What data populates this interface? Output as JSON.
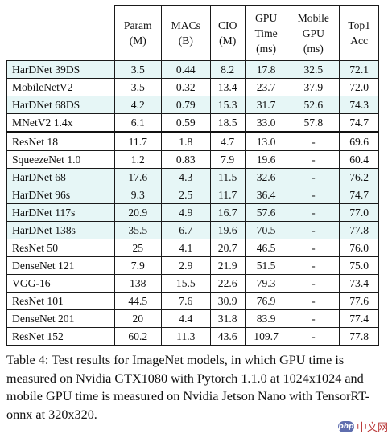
{
  "table": {
    "headers": [
      [],
      [
        "Param",
        "(M)"
      ],
      [
        "MACs",
        "(B)"
      ],
      [
        "CIO",
        "(M)"
      ],
      [
        "GPU",
        "Time",
        "(ms)"
      ],
      [
        "Mobile",
        "GPU",
        "(ms)"
      ],
      [
        "Top1",
        "Acc"
      ]
    ],
    "rows": [
      {
        "name": "HarDNet 39DS",
        "param": "3.5",
        "macs": "0.44",
        "cio": "8.2",
        "gpu": "17.8",
        "mobile": "32.5",
        "top1": "72.1",
        "highlight": true
      },
      {
        "name": "MobileNetV2",
        "param": "3.5",
        "macs": "0.32",
        "cio": "13.4",
        "gpu": "23.7",
        "mobile": "37.9",
        "top1": "72.0",
        "highlight": false
      },
      {
        "name": "HarDNet 68DS",
        "param": "4.2",
        "macs": "0.79",
        "cio": "15.3",
        "gpu": "31.7",
        "mobile": "52.6",
        "top1": "74.3",
        "highlight": true
      },
      {
        "name": "MNetV2 1.4x",
        "param": "6.1",
        "macs": "0.59",
        "cio": "18.5",
        "gpu": "33.0",
        "mobile": "57.8",
        "top1": "74.7",
        "highlight": false
      },
      {
        "name": "ResNet 18",
        "param": "11.7",
        "macs": "1.8",
        "cio": "4.7",
        "gpu": "13.0",
        "mobile": "-",
        "top1": "69.6",
        "highlight": false,
        "separator": true
      },
      {
        "name": "SqueezeNet 1.0",
        "param": "1.2",
        "macs": "0.83",
        "cio": "7.9",
        "gpu": "19.6",
        "mobile": "-",
        "top1": "60.4",
        "highlight": false
      },
      {
        "name": "HarDNet 68",
        "param": "17.6",
        "macs": "4.3",
        "cio": "11.5",
        "gpu": "32.6",
        "mobile": "-",
        "top1": "76.2",
        "highlight": true
      },
      {
        "name": "HarDNet 96s",
        "param": "9.3",
        "macs": "2.5",
        "cio": "11.7",
        "gpu": "36.4",
        "mobile": "-",
        "top1": "74.7",
        "highlight": true
      },
      {
        "name": "HarDNet 117s",
        "param": "20.9",
        "macs": "4.9",
        "cio": "16.7",
        "gpu": "57.6",
        "mobile": "-",
        "top1": "77.0",
        "highlight": true
      },
      {
        "name": "HarDNet 138s",
        "param": "35.5",
        "macs": "6.7",
        "cio": "19.6",
        "gpu": "70.5",
        "mobile": "-",
        "top1": "77.8",
        "highlight": true
      },
      {
        "name": "ResNet 50",
        "param": "25",
        "macs": "4.1",
        "cio": "20.7",
        "gpu": "46.5",
        "mobile": "-",
        "top1": "76.0",
        "highlight": false
      },
      {
        "name": "DenseNet 121",
        "param": "7.9",
        "macs": "2.9",
        "cio": "21.9",
        "gpu": "51.5",
        "mobile": "-",
        "top1": "75.0",
        "highlight": false
      },
      {
        "name": "VGG-16",
        "param": "138",
        "macs": "15.5",
        "cio": "22.6",
        "gpu": "79.3",
        "mobile": "-",
        "top1": "73.4",
        "highlight": false
      },
      {
        "name": "ResNet 101",
        "param": "44.5",
        "macs": "7.6",
        "cio": "30.9",
        "gpu": "76.9",
        "mobile": "-",
        "top1": "77.6",
        "highlight": false
      },
      {
        "name": "DenseNet 201",
        "param": "20",
        "macs": "4.4",
        "cio": "31.8",
        "gpu": "83.9",
        "mobile": "-",
        "top1": "77.4",
        "highlight": false
      },
      {
        "name": "ResNet 152",
        "param": "60.2",
        "macs": "11.3",
        "cio": "43.6",
        "gpu": "109.7",
        "mobile": "-",
        "top1": "77.8",
        "highlight": false
      }
    ]
  },
  "caption": "Table 4: Test results for ImageNet models, in which GPU time is measured on Nvidia GTX1080 with Pytorch 1.1.0 at 1024x1024 and mobile GPU time is measured on Nvidia Jetson Nano with TensorRT-onnx at 320x320.",
  "watermark": {
    "badge": "php",
    "text": "中文网"
  },
  "colors": {
    "highlight_row": "#e6f6f6",
    "rule": "#111111"
  }
}
